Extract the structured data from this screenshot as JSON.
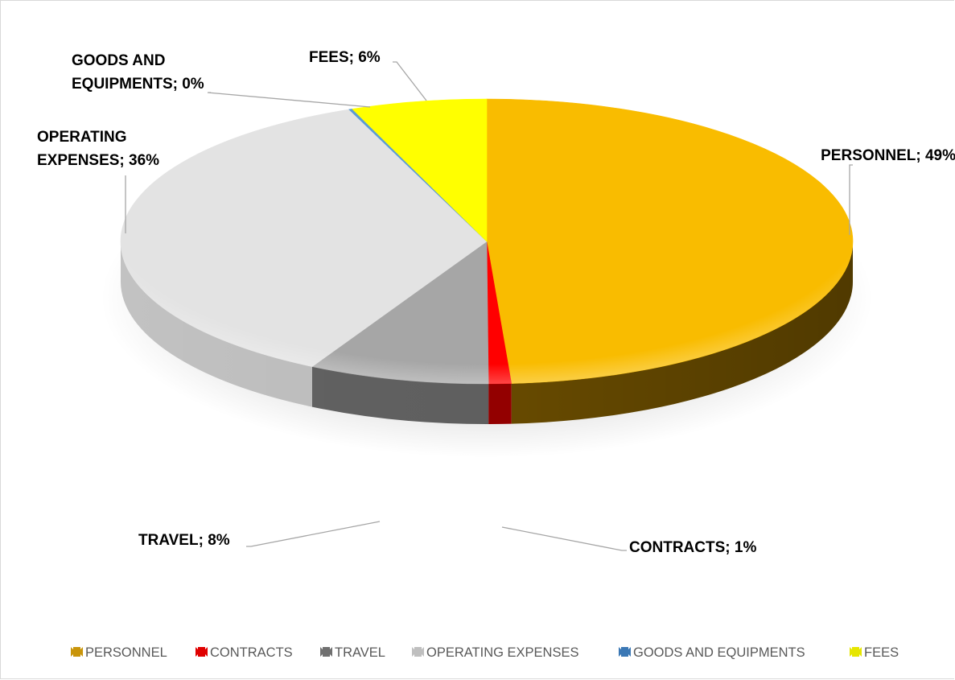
{
  "chart_data": {
    "type": "pie",
    "style": "3d",
    "legend_position": "bottom",
    "categories": [
      "PERSONNEL",
      "CONTRACTS",
      "TRAVEL",
      "OPERATING EXPENSES",
      "GOODS AND EQUIPMENTS",
      "FEES"
    ],
    "values": [
      49,
      1,
      8,
      36,
      0,
      6
    ],
    "data_labels": [
      [
        "PERSONNEL; 49%"
      ],
      [
        "CONTRACTS; 1%"
      ],
      [
        "TRAVEL; 8%"
      ],
      [
        "OPERATING",
        "EXPENSES; 36%"
      ],
      [
        "GOODS AND",
        "EQUIPMENTS; 0%"
      ],
      [
        "FEES; 6%"
      ]
    ],
    "colors": [
      "#f9bc00",
      "#ff0000",
      "#a6a6a6",
      "#e3e3e3",
      "#5b9bd5",
      "#ffff00"
    ],
    "side_colors": [
      "#6b4d00",
      "#9a0000",
      "#636363",
      "#c2c2c2",
      "#2e5c86",
      "#9a9a00"
    ],
    "legend_marker_colors": [
      "#c9950a",
      "#e00000",
      "#707070",
      "#bfbfbf",
      "#3b78b5",
      "#e6e600"
    ]
  }
}
